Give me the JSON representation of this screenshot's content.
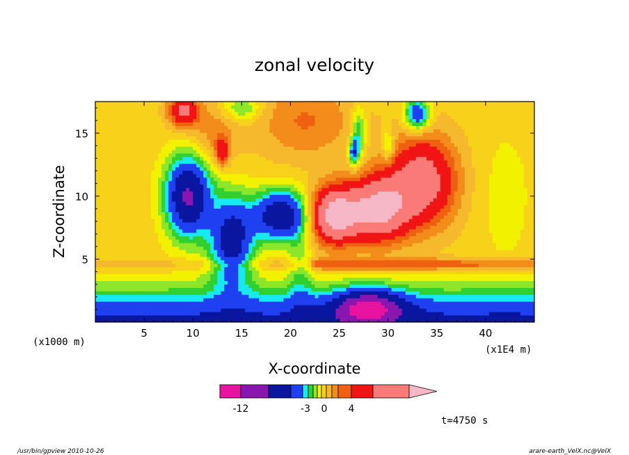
{
  "chart_data": {
    "type": "heatmap",
    "title": "zonal velocity",
    "xlabel": "X-coordinate",
    "ylabel": "Z-coordinate",
    "x_unit_label": "(x1E4 m)",
    "y_unit_label": "(x1000 m)",
    "xlim": [
      0,
      45
    ],
    "ylim": [
      0,
      17.5
    ],
    "xticks": [
      5,
      10,
      15,
      20,
      25,
      30,
      35,
      40
    ],
    "yticks": [
      5,
      10,
      15
    ],
    "grid": false,
    "colorbar": {
      "levels": [
        -15,
        -12,
        -9,
        -6,
        -4,
        -3,
        -2,
        -1,
        0,
        1,
        2,
        3,
        4,
        6,
        9
      ],
      "colors": [
        "#e8139e",
        "#8a16b0",
        "#0b16a0",
        "#1f40f0",
        "#18e8f0",
        "#30d030",
        "#8ce62a",
        "#f2f200",
        "#f8d21a",
        "#f6b82c",
        "#f38c1a",
        "#ef6010",
        "#f01414",
        "#fa7a78",
        "#f6b8c6"
      ],
      "tick_labels": [
        {
          "value": -12,
          "label": "-12"
        },
        {
          "value": -3,
          "label": "-3"
        },
        {
          "value": 0,
          "label": "0"
        },
        {
          "value": 4,
          "label": "4"
        }
      ]
    },
    "time_label": "t=4750 s"
  },
  "footer": {
    "left": "/usr/bin/gpview   2010-10-26",
    "right": "arare-earth_VelX.nc@VelX"
  }
}
